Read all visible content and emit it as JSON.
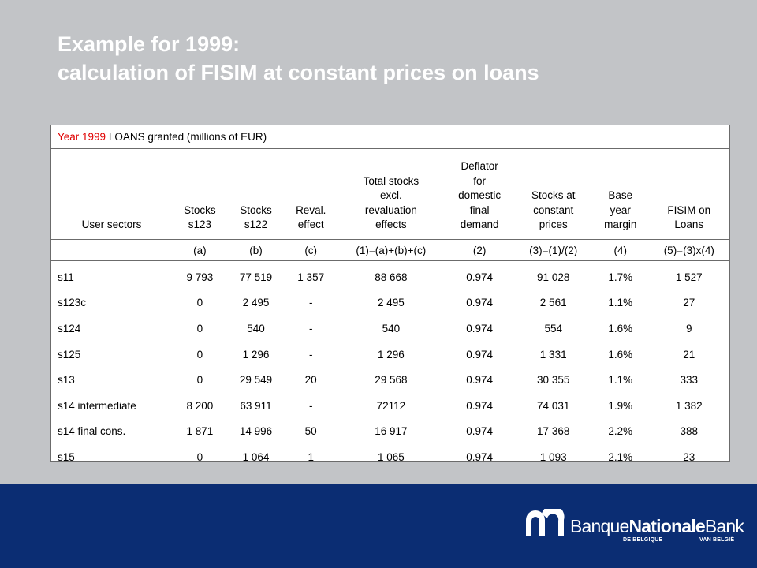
{
  "title": {
    "line1": "Example for 1999:",
    "line2": "calculation of FISIM at constant prices on loans"
  },
  "table": {
    "caption_red": "Year 1999",
    "caption_bold": " LOANS granted",
    "caption_rest": " (millions of EUR)",
    "headers": [
      [
        "User sectors"
      ],
      [
        "Stocks",
        "s123"
      ],
      [
        "Stocks",
        "s122"
      ],
      [
        "Reval.",
        "effect"
      ],
      [
        "Total stocks",
        "excl.",
        "revaluation",
        "effects"
      ],
      [
        "Deflator",
        "for",
        "domestic",
        "final",
        "demand"
      ],
      [
        "Stocks at",
        "constant",
        "prices"
      ],
      [
        "Base",
        "year",
        "margin"
      ],
      [
        "FISIM on",
        "Loans"
      ]
    ],
    "codes": [
      "",
      "(a)",
      "(b)",
      "(c)",
      "(1)=(a)+(b)+(c)",
      "(2)",
      "(3)=(1)/(2)",
      "(4)",
      "(5)=(3)x(4)"
    ],
    "rows": [
      [
        "s11",
        "9 793",
        "77 519",
        "1 357",
        "88 668",
        "0.974",
        "91 028",
        "1.7%",
        "1 527"
      ],
      [
        "s123c",
        "0",
        "2 495",
        "-",
        "2 495",
        "0.974",
        "2 561",
        "1.1%",
        "27"
      ],
      [
        "s124",
        "0",
        "540",
        "-",
        "540",
        "0.974",
        "554",
        "1.6%",
        "9"
      ],
      [
        "s125",
        "0",
        "1 296",
        "-",
        "1 296",
        "0.974",
        "1 331",
        "1.6%",
        "21"
      ],
      [
        "s13",
        "0",
        "29 549",
        "20",
        "29 568",
        "0.974",
        "30 355",
        "1.1%",
        "333"
      ],
      [
        "s14 intermediate",
        "8 200",
        "63 911",
        "-",
        "72112",
        "0.974",
        "74 031",
        "1.9%",
        "1 382"
      ],
      [
        "s14 final cons.",
        "1 871",
        "14 996",
        "50",
        "16 917",
        "0.974",
        "17 368",
        "2.2%",
        "388"
      ],
      [
        "s15",
        "0",
        "1 064",
        "1",
        "1 065",
        "0.974",
        "1 093",
        "2.1%",
        "23"
      ]
    ]
  },
  "logo": {
    "word1": "Banque",
    "word2": "Nationale",
    "word3": "Bank",
    "sub_left": "DE BELGIQUE",
    "sub_right": "VAN BELGIË",
    "icon": "bnb-arch-logo-icon"
  },
  "colors": {
    "background": "#c2c4c7",
    "footer": "#0b2d73",
    "caption_accent": "#e00000"
  }
}
